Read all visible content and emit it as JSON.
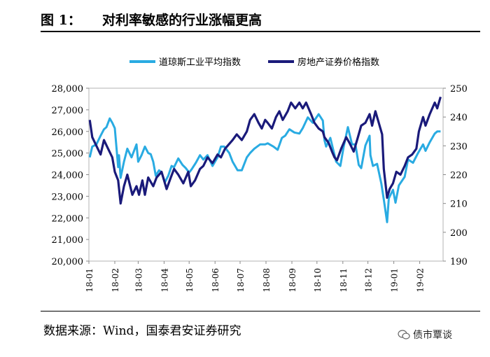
{
  "header": {
    "figure_label": "图 1：",
    "title": "对利率敏感的行业涨幅更高"
  },
  "footer": {
    "source": "数据来源：Wind，国泰君安证券研究",
    "watermark": "债市覃谈"
  },
  "colors": {
    "dow": "#29ABE2",
    "housing": "#1A1A7A",
    "grid": "#e6e6e6"
  },
  "icons": {
    "watermark": "wechat-bubble-icon"
  },
  "chart_data": {
    "type": "line",
    "title": "",
    "xlabel": "",
    "ylabel": "",
    "legend_position": "top",
    "grid": false,
    "x_ticks": [
      "18-01",
      "18-02",
      "18-03",
      "18-04",
      "18-05",
      "18-06",
      "18-07",
      "18-08",
      "18-09",
      "18-10",
      "18-11",
      "18-12",
      "19-01",
      "19-02"
    ],
    "y_left": {
      "lim": [
        20000,
        28000
      ],
      "ticks": [
        "20,000",
        "21,000",
        "22,000",
        "23,000",
        "24,000",
        "25,000",
        "26,000",
        "27,000",
        "28,000"
      ]
    },
    "y_right": {
      "lim": [
        190,
        250
      ],
      "ticks": [
        "190",
        "200",
        "210",
        "220",
        "230",
        "240",
        "250"
      ]
    },
    "series": [
      {
        "name": "道琼斯工业平均指数",
        "axis": "left",
        "points": [
          [
            "2018-01-02",
            24800
          ],
          [
            "2018-01-05",
            25300
          ],
          [
            "2018-01-10",
            25400
          ],
          [
            "2018-01-15",
            25800
          ],
          [
            "2018-01-19",
            26100
          ],
          [
            "2018-01-22",
            26200
          ],
          [
            "2018-01-26",
            26600
          ],
          [
            "2018-01-29",
            26400
          ],
          [
            "2018-02-01",
            26150
          ],
          [
            "2018-02-05",
            24350
          ],
          [
            "2018-02-06",
            24900
          ],
          [
            "2018-02-08",
            23850
          ],
          [
            "2018-02-12",
            24600
          ],
          [
            "2018-02-16",
            25200
          ],
          [
            "2018-02-21",
            24800
          ],
          [
            "2018-02-27",
            25400
          ],
          [
            "2018-03-01",
            24600
          ],
          [
            "2018-03-05",
            24900
          ],
          [
            "2018-03-09",
            25300
          ],
          [
            "2018-03-13",
            25000
          ],
          [
            "2018-03-16",
            24950
          ],
          [
            "2018-03-19",
            24600
          ],
          [
            "2018-03-22",
            23950
          ],
          [
            "2018-03-26",
            24200
          ],
          [
            "2018-03-29",
            24100
          ],
          [
            "2018-04-02",
            23650
          ],
          [
            "2018-04-06",
            23950
          ],
          [
            "2018-04-10",
            24400
          ],
          [
            "2018-04-13",
            24350
          ],
          [
            "2018-04-18",
            24750
          ],
          [
            "2018-04-23",
            24450
          ],
          [
            "2018-04-27",
            24300
          ],
          [
            "2018-05-01",
            24100
          ],
          [
            "2018-05-04",
            24250
          ],
          [
            "2018-05-09",
            24550
          ],
          [
            "2018-05-14",
            24900
          ],
          [
            "2018-05-18",
            24700
          ],
          [
            "2018-05-23",
            24900
          ],
          [
            "2018-05-29",
            24400
          ],
          [
            "2018-06-04",
            24800
          ],
          [
            "2018-06-08",
            25300
          ],
          [
            "2018-06-12",
            25300
          ],
          [
            "2018-06-18",
            25000
          ],
          [
            "2018-06-22",
            24600
          ],
          [
            "2018-06-28",
            24200
          ],
          [
            "2018-07-03",
            24200
          ],
          [
            "2018-07-09",
            24800
          ],
          [
            "2018-07-13",
            25000
          ],
          [
            "2018-07-18",
            25200
          ],
          [
            "2018-07-25",
            25400
          ],
          [
            "2018-07-31",
            25400
          ],
          [
            "2018-08-03",
            25450
          ],
          [
            "2018-08-10",
            25300
          ],
          [
            "2018-08-15",
            25150
          ],
          [
            "2018-08-20",
            25700
          ],
          [
            "2018-08-24",
            25800
          ],
          [
            "2018-08-29",
            26100
          ],
          [
            "2018-09-04",
            25950
          ],
          [
            "2018-09-10",
            25900
          ],
          [
            "2018-09-14",
            26150
          ],
          [
            "2018-09-20",
            26650
          ],
          [
            "2018-09-26",
            26400
          ],
          [
            "2018-10-03",
            26800
          ],
          [
            "2018-10-08",
            26500
          ],
          [
            "2018-10-10",
            25600
          ],
          [
            "2018-10-12",
            25300
          ],
          [
            "2018-10-17",
            25700
          ],
          [
            "2018-10-24",
            24600
          ],
          [
            "2018-10-29",
            24400
          ],
          [
            "2018-11-02",
            25300
          ],
          [
            "2018-11-07",
            26200
          ],
          [
            "2018-11-12",
            25400
          ],
          [
            "2018-11-16",
            25400
          ],
          [
            "2018-11-20",
            24450
          ],
          [
            "2018-11-23",
            24300
          ],
          [
            "2018-11-28",
            25350
          ],
          [
            "2018-12-03",
            25800
          ],
          [
            "2018-12-04",
            24900
          ],
          [
            "2018-12-07",
            24400
          ],
          [
            "2018-12-12",
            24500
          ],
          [
            "2018-12-17",
            23600
          ],
          [
            "2018-12-20",
            22850
          ],
          [
            "2018-12-24",
            21800
          ],
          [
            "2018-12-26",
            22900
          ],
          [
            "2018-12-31",
            23300
          ],
          [
            "2019-01-03",
            22700
          ],
          [
            "2019-01-07",
            23500
          ],
          [
            "2019-01-14",
            23900
          ],
          [
            "2019-01-18",
            24700
          ],
          [
            "2019-01-24",
            24550
          ],
          [
            "2019-01-30",
            25000
          ],
          [
            "2019-02-05",
            25400
          ],
          [
            "2019-02-08",
            25100
          ],
          [
            "2019-02-13",
            25500
          ],
          [
            "2019-02-19",
            25900
          ],
          [
            "2019-02-22",
            26000
          ],
          [
            "2019-02-26",
            26000
          ]
        ]
      },
      {
        "name": "房地产证券价格指数",
        "axis": "right",
        "points": [
          [
            "2018-01-02",
            239
          ],
          [
            "2018-01-05",
            233
          ],
          [
            "2018-01-10",
            230
          ],
          [
            "2018-01-15",
            227
          ],
          [
            "2018-01-19",
            232
          ],
          [
            "2018-01-24",
            229
          ],
          [
            "2018-01-29",
            226
          ],
          [
            "2018-02-01",
            221
          ],
          [
            "2018-02-05",
            218
          ],
          [
            "2018-02-08",
            210
          ],
          [
            "2018-02-12",
            216
          ],
          [
            "2018-02-16",
            220
          ],
          [
            "2018-02-22",
            213
          ],
          [
            "2018-02-27",
            216
          ],
          [
            "2018-03-02",
            213
          ],
          [
            "2018-03-06",
            218
          ],
          [
            "2018-03-09",
            213
          ],
          [
            "2018-03-13",
            219
          ],
          [
            "2018-03-19",
            216
          ],
          [
            "2018-03-23",
            219
          ],
          [
            "2018-03-29",
            221
          ],
          [
            "2018-04-04",
            215
          ],
          [
            "2018-04-09",
            219
          ],
          [
            "2018-04-13",
            222
          ],
          [
            "2018-04-18",
            220
          ],
          [
            "2018-04-24",
            217
          ],
          [
            "2018-04-30",
            221
          ],
          [
            "2018-05-03",
            216
          ],
          [
            "2018-05-08",
            218
          ],
          [
            "2018-05-14",
            222
          ],
          [
            "2018-05-18",
            223
          ],
          [
            "2018-05-23",
            226
          ],
          [
            "2018-05-29",
            224
          ],
          [
            "2018-06-04",
            227
          ],
          [
            "2018-06-08",
            226
          ],
          [
            "2018-06-13",
            229
          ],
          [
            "2018-06-19",
            231
          ],
          [
            "2018-06-22",
            232
          ],
          [
            "2018-06-27",
            234
          ],
          [
            "2018-07-03",
            232
          ],
          [
            "2018-07-09",
            235
          ],
          [
            "2018-07-13",
            239
          ],
          [
            "2018-07-18",
            241
          ],
          [
            "2018-07-23",
            238
          ],
          [
            "2018-07-27",
            236
          ],
          [
            "2018-07-31",
            239
          ],
          [
            "2018-08-03",
            238
          ],
          [
            "2018-08-08",
            236
          ],
          [
            "2018-08-13",
            240
          ],
          [
            "2018-08-17",
            242
          ],
          [
            "2018-08-21",
            239
          ],
          [
            "2018-08-27",
            242
          ],
          [
            "2018-08-31",
            245
          ],
          [
            "2018-09-05",
            243
          ],
          [
            "2018-09-10",
            245
          ],
          [
            "2018-09-14",
            243
          ],
          [
            "2018-09-18",
            245
          ],
          [
            "2018-09-24",
            241
          ],
          [
            "2018-09-28",
            238
          ],
          [
            "2018-10-03",
            236
          ],
          [
            "2018-10-08",
            235
          ],
          [
            "2018-10-10",
            233
          ],
          [
            "2018-10-15",
            231
          ],
          [
            "2018-10-19",
            228
          ],
          [
            "2018-10-22",
            226
          ],
          [
            "2018-10-25",
            225
          ],
          [
            "2018-10-30",
            229
          ],
          [
            "2018-11-05",
            233
          ],
          [
            "2018-11-09",
            231
          ],
          [
            "2018-11-14",
            228
          ],
          [
            "2018-11-19",
            233
          ],
          [
            "2018-11-23",
            237
          ],
          [
            "2018-11-28",
            238
          ],
          [
            "2018-12-03",
            241
          ],
          [
            "2018-12-06",
            237
          ],
          [
            "2018-12-10",
            242
          ],
          [
            "2018-12-14",
            238
          ],
          [
            "2018-12-18",
            234
          ],
          [
            "2018-12-20",
            222
          ],
          [
            "2018-12-24",
            212
          ],
          [
            "2018-12-27",
            215
          ],
          [
            "2018-12-31",
            217
          ],
          [
            "2019-01-04",
            221
          ],
          [
            "2019-01-09",
            220
          ],
          [
            "2019-01-14",
            223
          ],
          [
            "2019-01-18",
            226
          ],
          [
            "2019-01-23",
            227
          ],
          [
            "2019-01-28",
            229
          ],
          [
            "2019-01-31",
            235
          ],
          [
            "2019-02-05",
            240
          ],
          [
            "2019-02-08",
            237
          ],
          [
            "2019-02-13",
            241
          ],
          [
            "2019-02-19",
            245
          ],
          [
            "2019-02-22",
            243
          ],
          [
            "2019-02-26",
            247
          ]
        ]
      }
    ]
  }
}
